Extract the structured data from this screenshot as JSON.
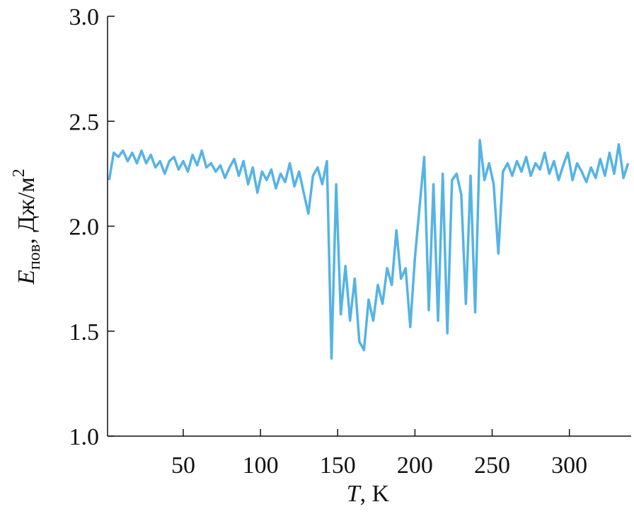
{
  "chart_data": {
    "type": "line",
    "ylabel": {
      "main": "E",
      "sub": "пов",
      "rest": ", Дж/м",
      "sup": "2"
    },
    "xlabel": {
      "main": "T",
      "rest": ", K"
    },
    "x": [
      2,
      5,
      8,
      11,
      14,
      17,
      20,
      23,
      26,
      29,
      32,
      35,
      38,
      41,
      44,
      47,
      50,
      53,
      56,
      59,
      62,
      65,
      68,
      71,
      74,
      77,
      80,
      83,
      86,
      89,
      92,
      95,
      98,
      101,
      104,
      107,
      110,
      113,
      116,
      119,
      122,
      125,
      128,
      131,
      134,
      137,
      140,
      143,
      146,
      149,
      152,
      155,
      158,
      161,
      164,
      167,
      170,
      173,
      176,
      179,
      182,
      185,
      188,
      191,
      194,
      197,
      200,
      203,
      206,
      209,
      212,
      215,
      218,
      221,
      224,
      227,
      230,
      233,
      236,
      239,
      242,
      245,
      248,
      251,
      254,
      257,
      260,
      263,
      266,
      269,
      272,
      275,
      278,
      281,
      284,
      287,
      290,
      293,
      296,
      299,
      302,
      305,
      308,
      311,
      314,
      317,
      320,
      323,
      326,
      329,
      332,
      335,
      338
    ],
    "series": [
      {
        "color": "#55b3e6",
        "values": [
          2.22,
          2.35,
          2.33,
          2.36,
          2.31,
          2.35,
          2.3,
          2.36,
          2.3,
          2.34,
          2.28,
          2.31,
          2.25,
          2.31,
          2.33,
          2.27,
          2.31,
          2.26,
          2.34,
          2.29,
          2.36,
          2.28,
          2.3,
          2.26,
          2.29,
          2.23,
          2.28,
          2.32,
          2.24,
          2.31,
          2.2,
          2.28,
          2.16,
          2.26,
          2.22,
          2.27,
          2.18,
          2.25,
          2.21,
          2.3,
          2.19,
          2.26,
          2.16,
          2.06,
          2.24,
          2.28,
          2.2,
          2.31,
          1.37,
          2.2,
          1.58,
          1.81,
          1.55,
          1.75,
          1.45,
          1.41,
          1.65,
          1.55,
          1.72,
          1.63,
          1.8,
          1.72,
          1.98,
          1.75,
          1.8,
          1.52,
          1.85,
          2.09,
          2.33,
          1.6,
          2.2,
          1.55,
          2.25,
          1.49,
          2.22,
          2.25,
          2.15,
          1.63,
          2.24,
          1.59,
          2.41,
          2.22,
          2.3,
          2.2,
          1.87,
          2.26,
          2.3,
          2.24,
          2.31,
          2.26,
          2.33,
          2.24,
          2.3,
          2.27,
          2.35,
          2.25,
          2.31,
          2.22,
          2.29,
          2.35,
          2.22,
          2.3,
          2.26,
          2.21,
          2.28,
          2.23,
          2.32,
          2.24,
          2.35,
          2.25,
          2.39,
          2.23,
          2.3
        ]
      }
    ],
    "xlim": [
      1,
      340
    ],
    "ylim": [
      1,
      3
    ],
    "xticks": [
      50,
      100,
      150,
      200,
      250,
      300
    ],
    "yticks": [
      {
        "value": 1,
        "label": "1.0"
      },
      1.5,
      {
        "value": 2,
        "label": "2.0"
      },
      2.5,
      {
        "value": 3,
        "label": "3.0"
      }
    ]
  }
}
